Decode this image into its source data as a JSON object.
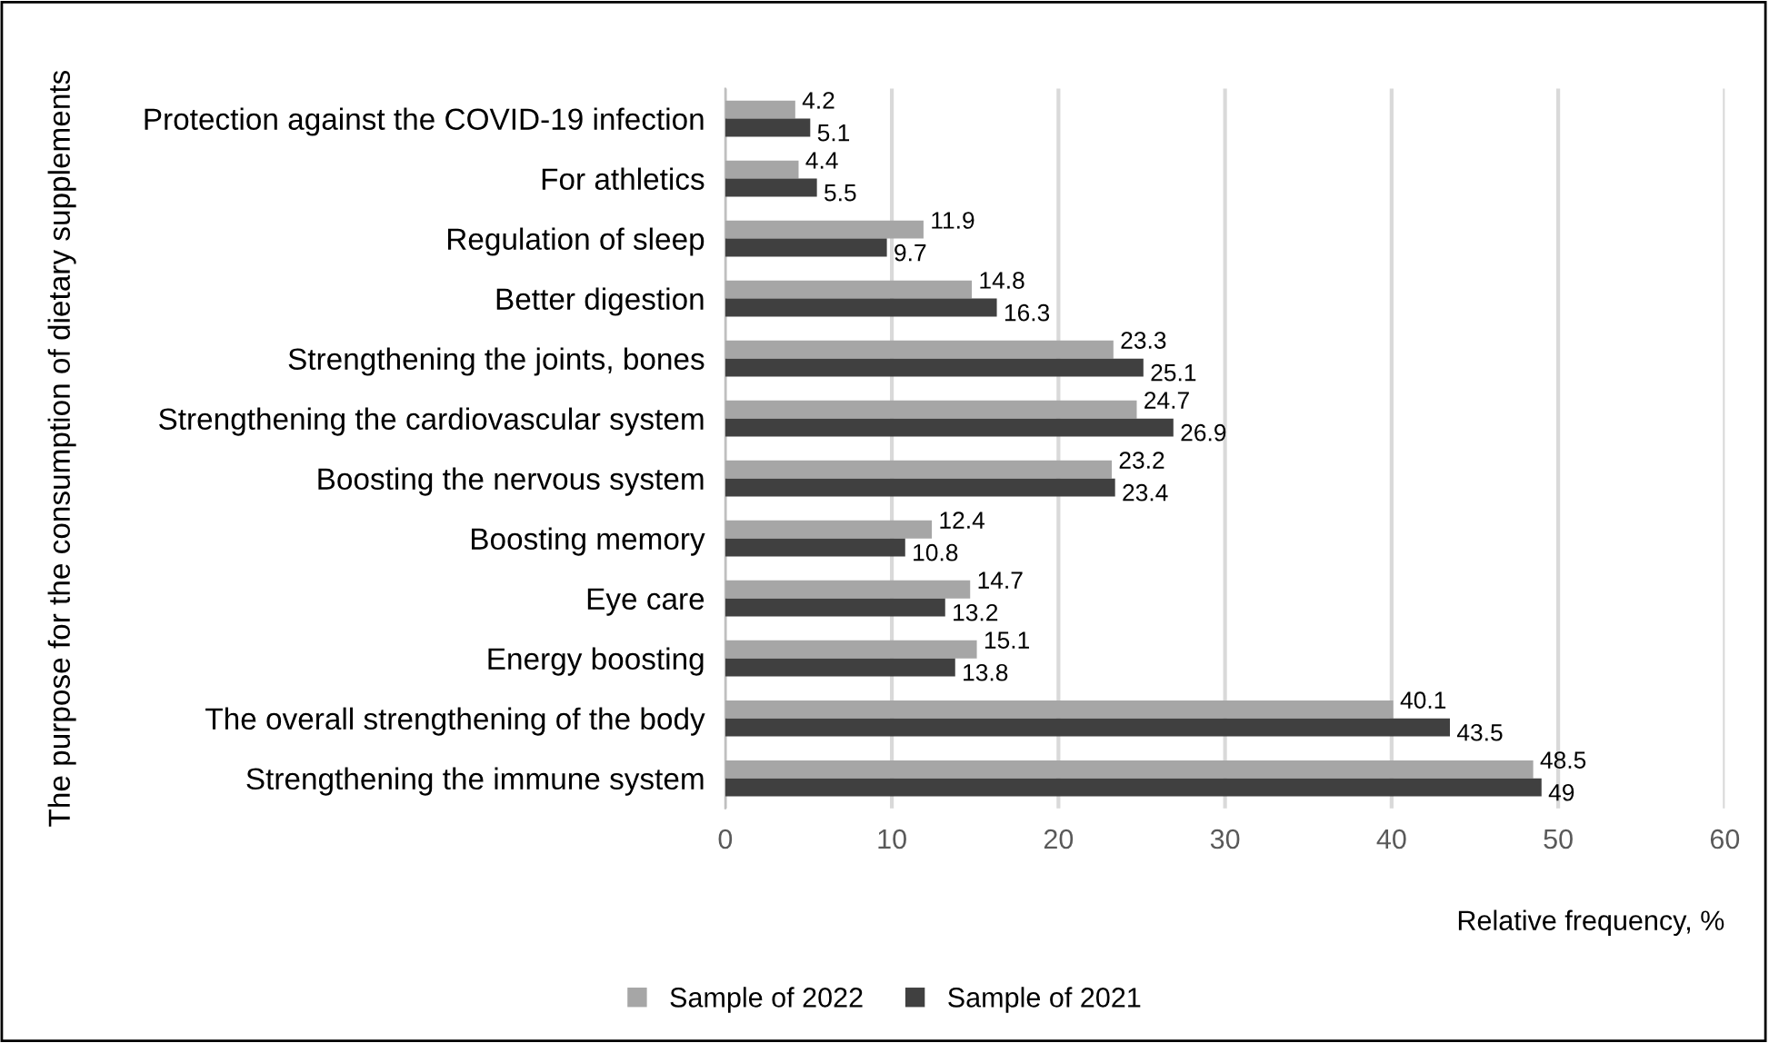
{
  "chart_data": {
    "type": "bar",
    "orientation": "horizontal",
    "xlabel": "Relative frequency, %",
    "ylabel": "The purpose for the consumption of dietary supplements",
    "categories": [
      "Protection against the COVID-19 infection",
      "For athletics",
      "Regulation of sleep",
      "Better digestion",
      "Strengthening the joints, bones",
      "Strengthening the cardiovascular system",
      "Boosting the nervous system",
      "Boosting memory",
      "Eye care",
      "Energy boosting",
      "The overall strengthening of the body",
      "Strengthening the immune system"
    ],
    "series": [
      {
        "name": "Sample of 2022",
        "color": "#a6a6a6",
        "values": [
          4.2,
          4.4,
          11.9,
          14.8,
          23.3,
          24.7,
          23.2,
          12.4,
          14.7,
          15.1,
          40.1,
          48.5
        ]
      },
      {
        "name": "Sample of 2021",
        "color": "#404040",
        "values": [
          5.1,
          5.5,
          9.7,
          16.3,
          25.1,
          26.9,
          23.4,
          10.8,
          13.2,
          13.8,
          43.5,
          49
        ]
      }
    ],
    "xlim": [
      0,
      60
    ],
    "xticks": [
      0,
      10,
      20,
      30,
      40,
      50,
      60
    ],
    "grid": "x",
    "legend": "bottom",
    "data_labels": true
  }
}
